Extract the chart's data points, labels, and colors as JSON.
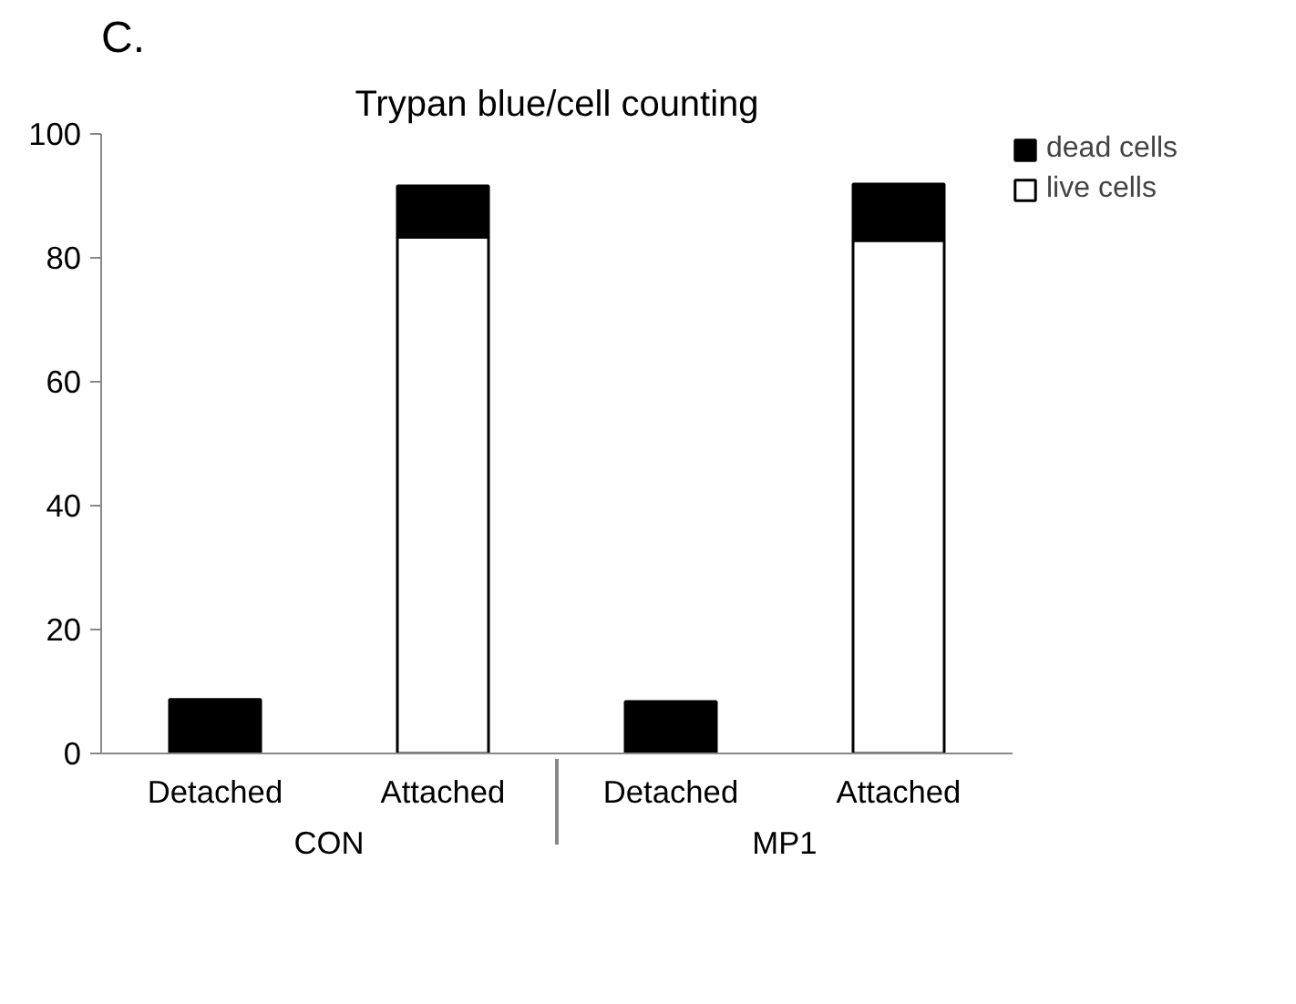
{
  "chart_data": {
    "type": "bar",
    "title": "Trypan blue/cell counting",
    "stacked": true,
    "categories": [
      "Detached",
      "Attached",
      "Detached",
      "Attached"
    ],
    "series": [
      {
        "name": "live cells",
        "color": "#ffffff",
        "values": [
          0,
          83.3,
          0,
          82.8
        ]
      },
      {
        "name": "dead cells",
        "color": "#000000",
        "values": [
          8.7,
          8.3,
          8.4,
          9.1
        ]
      }
    ],
    "ylim": [
      0,
      100
    ],
    "yticks": [
      0,
      20,
      40,
      60,
      80,
      100
    ],
    "grid": false,
    "legend": "top right",
    "annotations": [
      "C.",
      "CON",
      "MP1"
    ]
  }
}
